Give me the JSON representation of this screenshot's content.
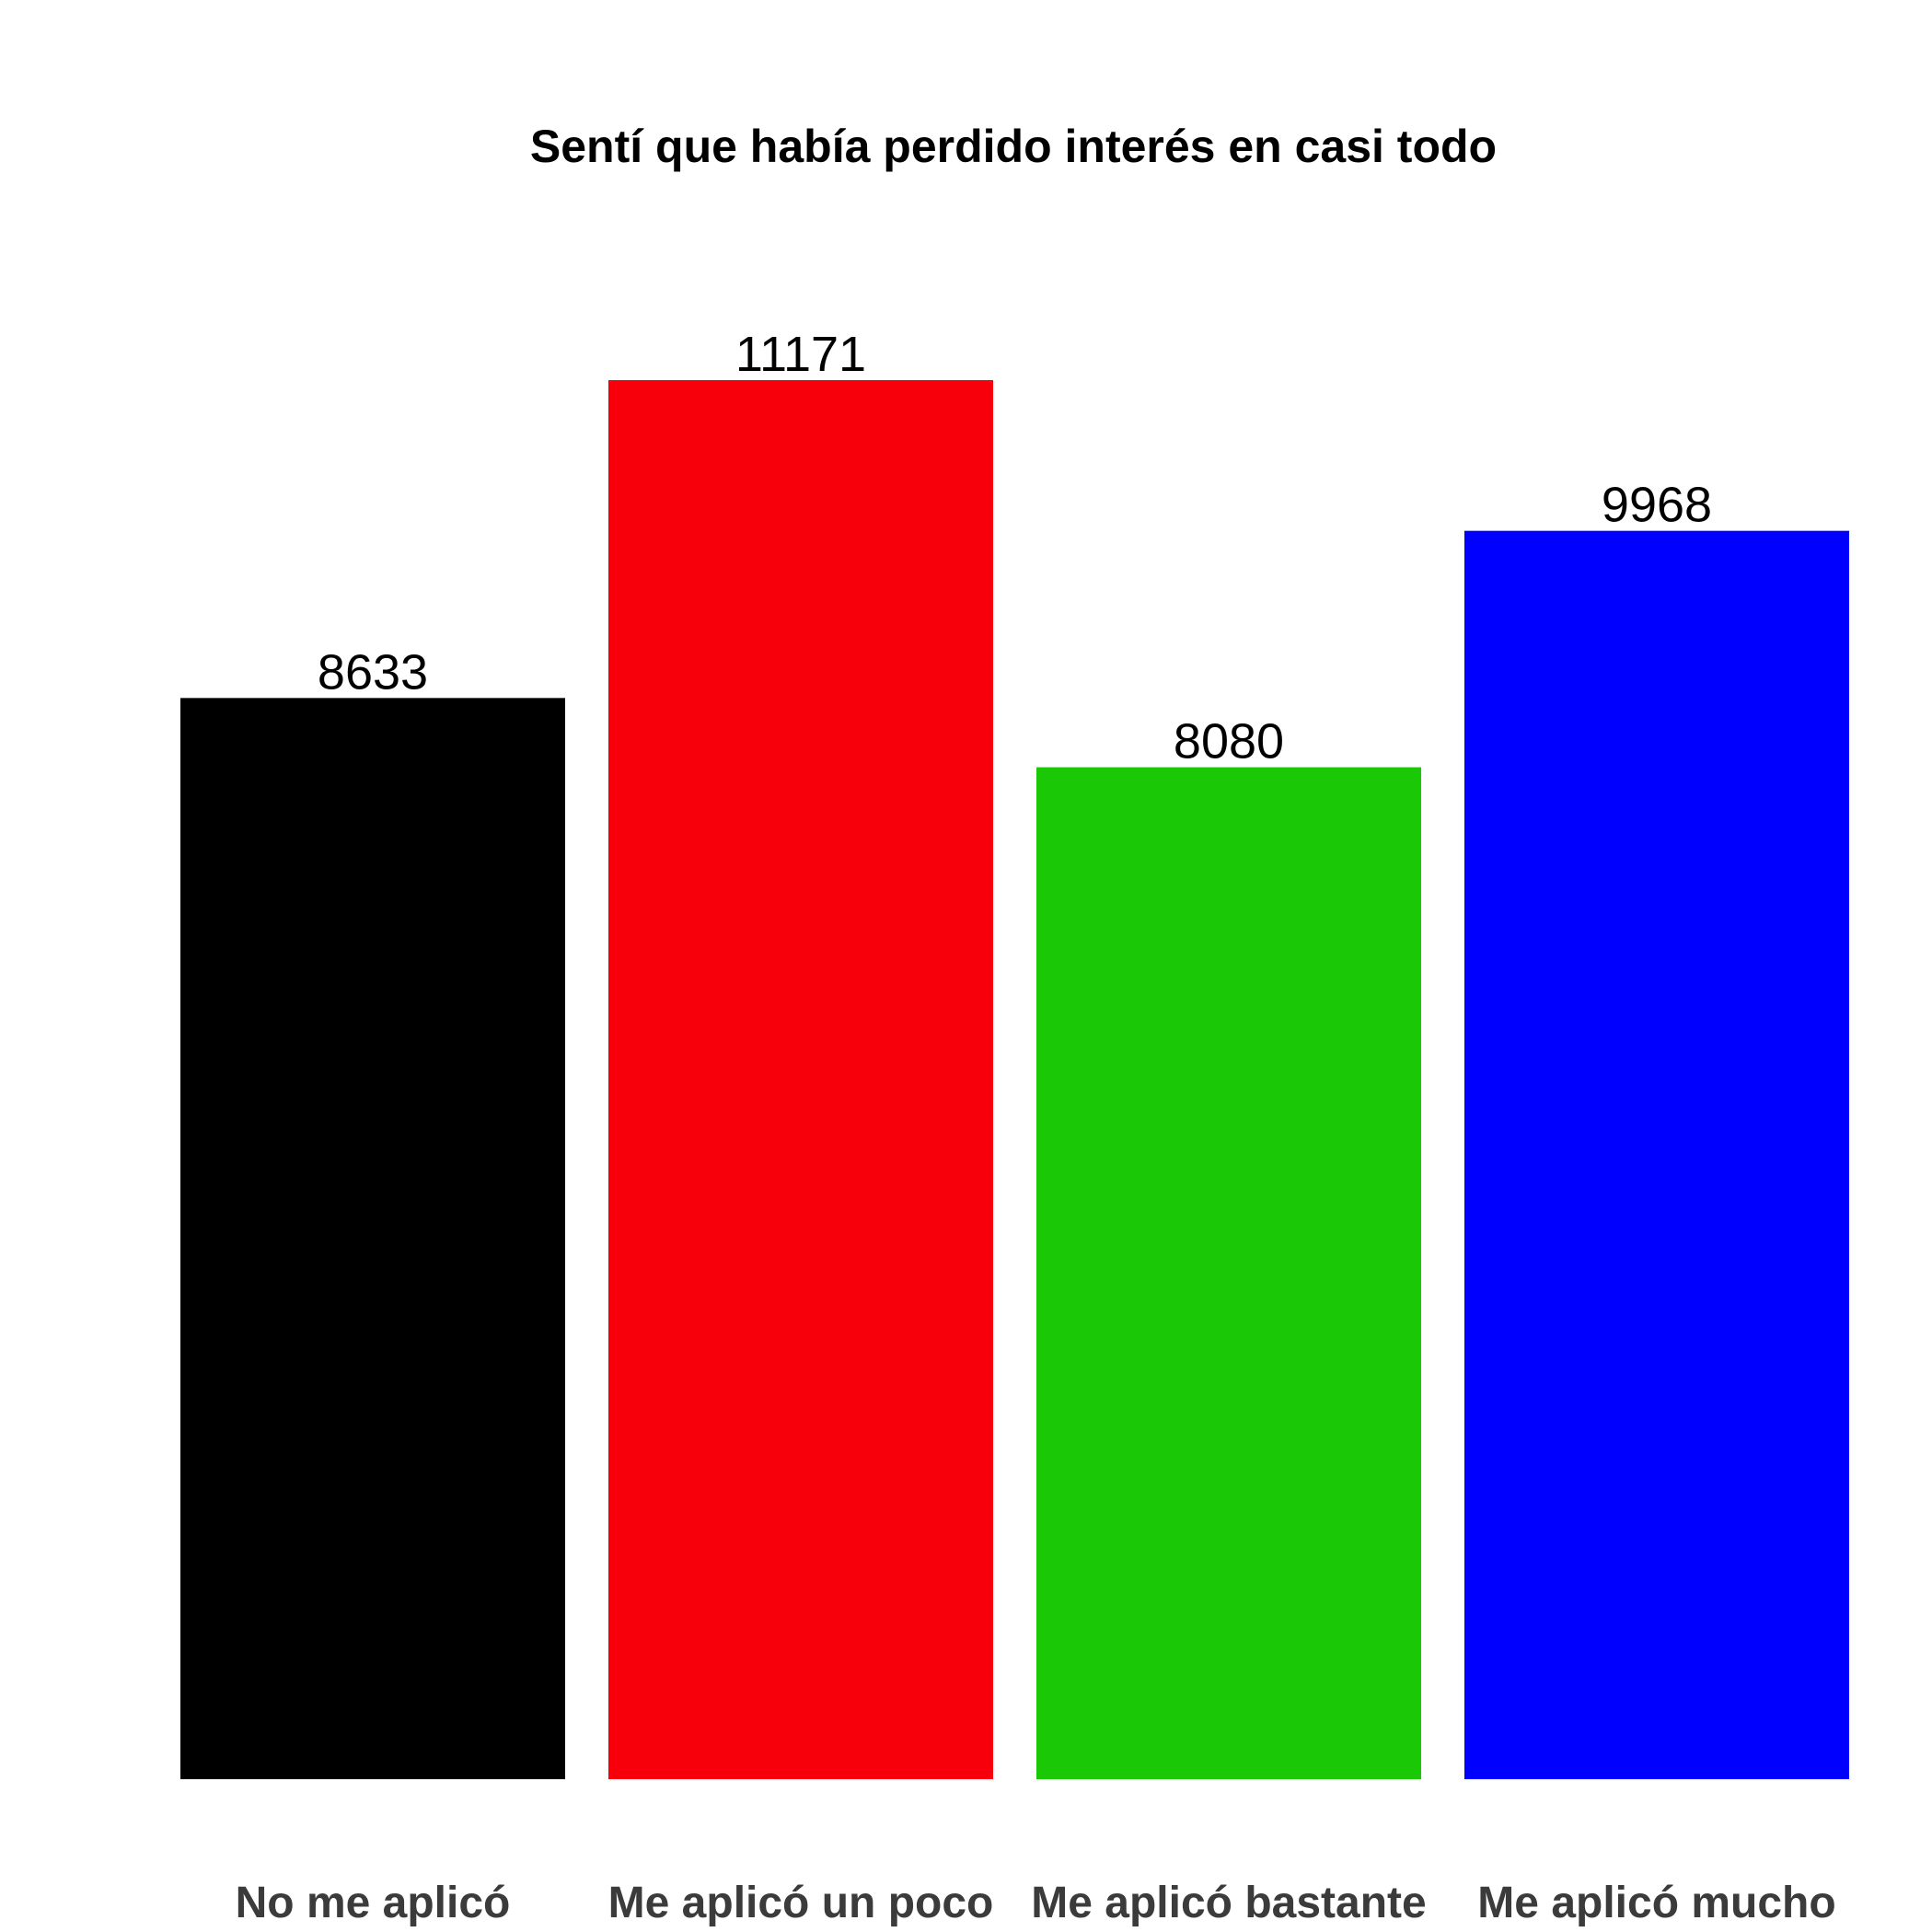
{
  "chart_data": {
    "type": "bar",
    "title": "Sentí que había perdido interés en casi todo",
    "xlabel": "",
    "ylabel": "",
    "categories": [
      "No me aplicó",
      "Me aplicó un poco",
      "Me aplicó bastante",
      "Me aplicó mucho"
    ],
    "values": [
      8633,
      11171,
      8080,
      9968
    ],
    "colors": [
      "#000000",
      "#f8000b",
      "#1bc805",
      "#0000ff"
    ],
    "ylim": [
      0,
      11171
    ],
    "grid": false,
    "legend": "none"
  }
}
